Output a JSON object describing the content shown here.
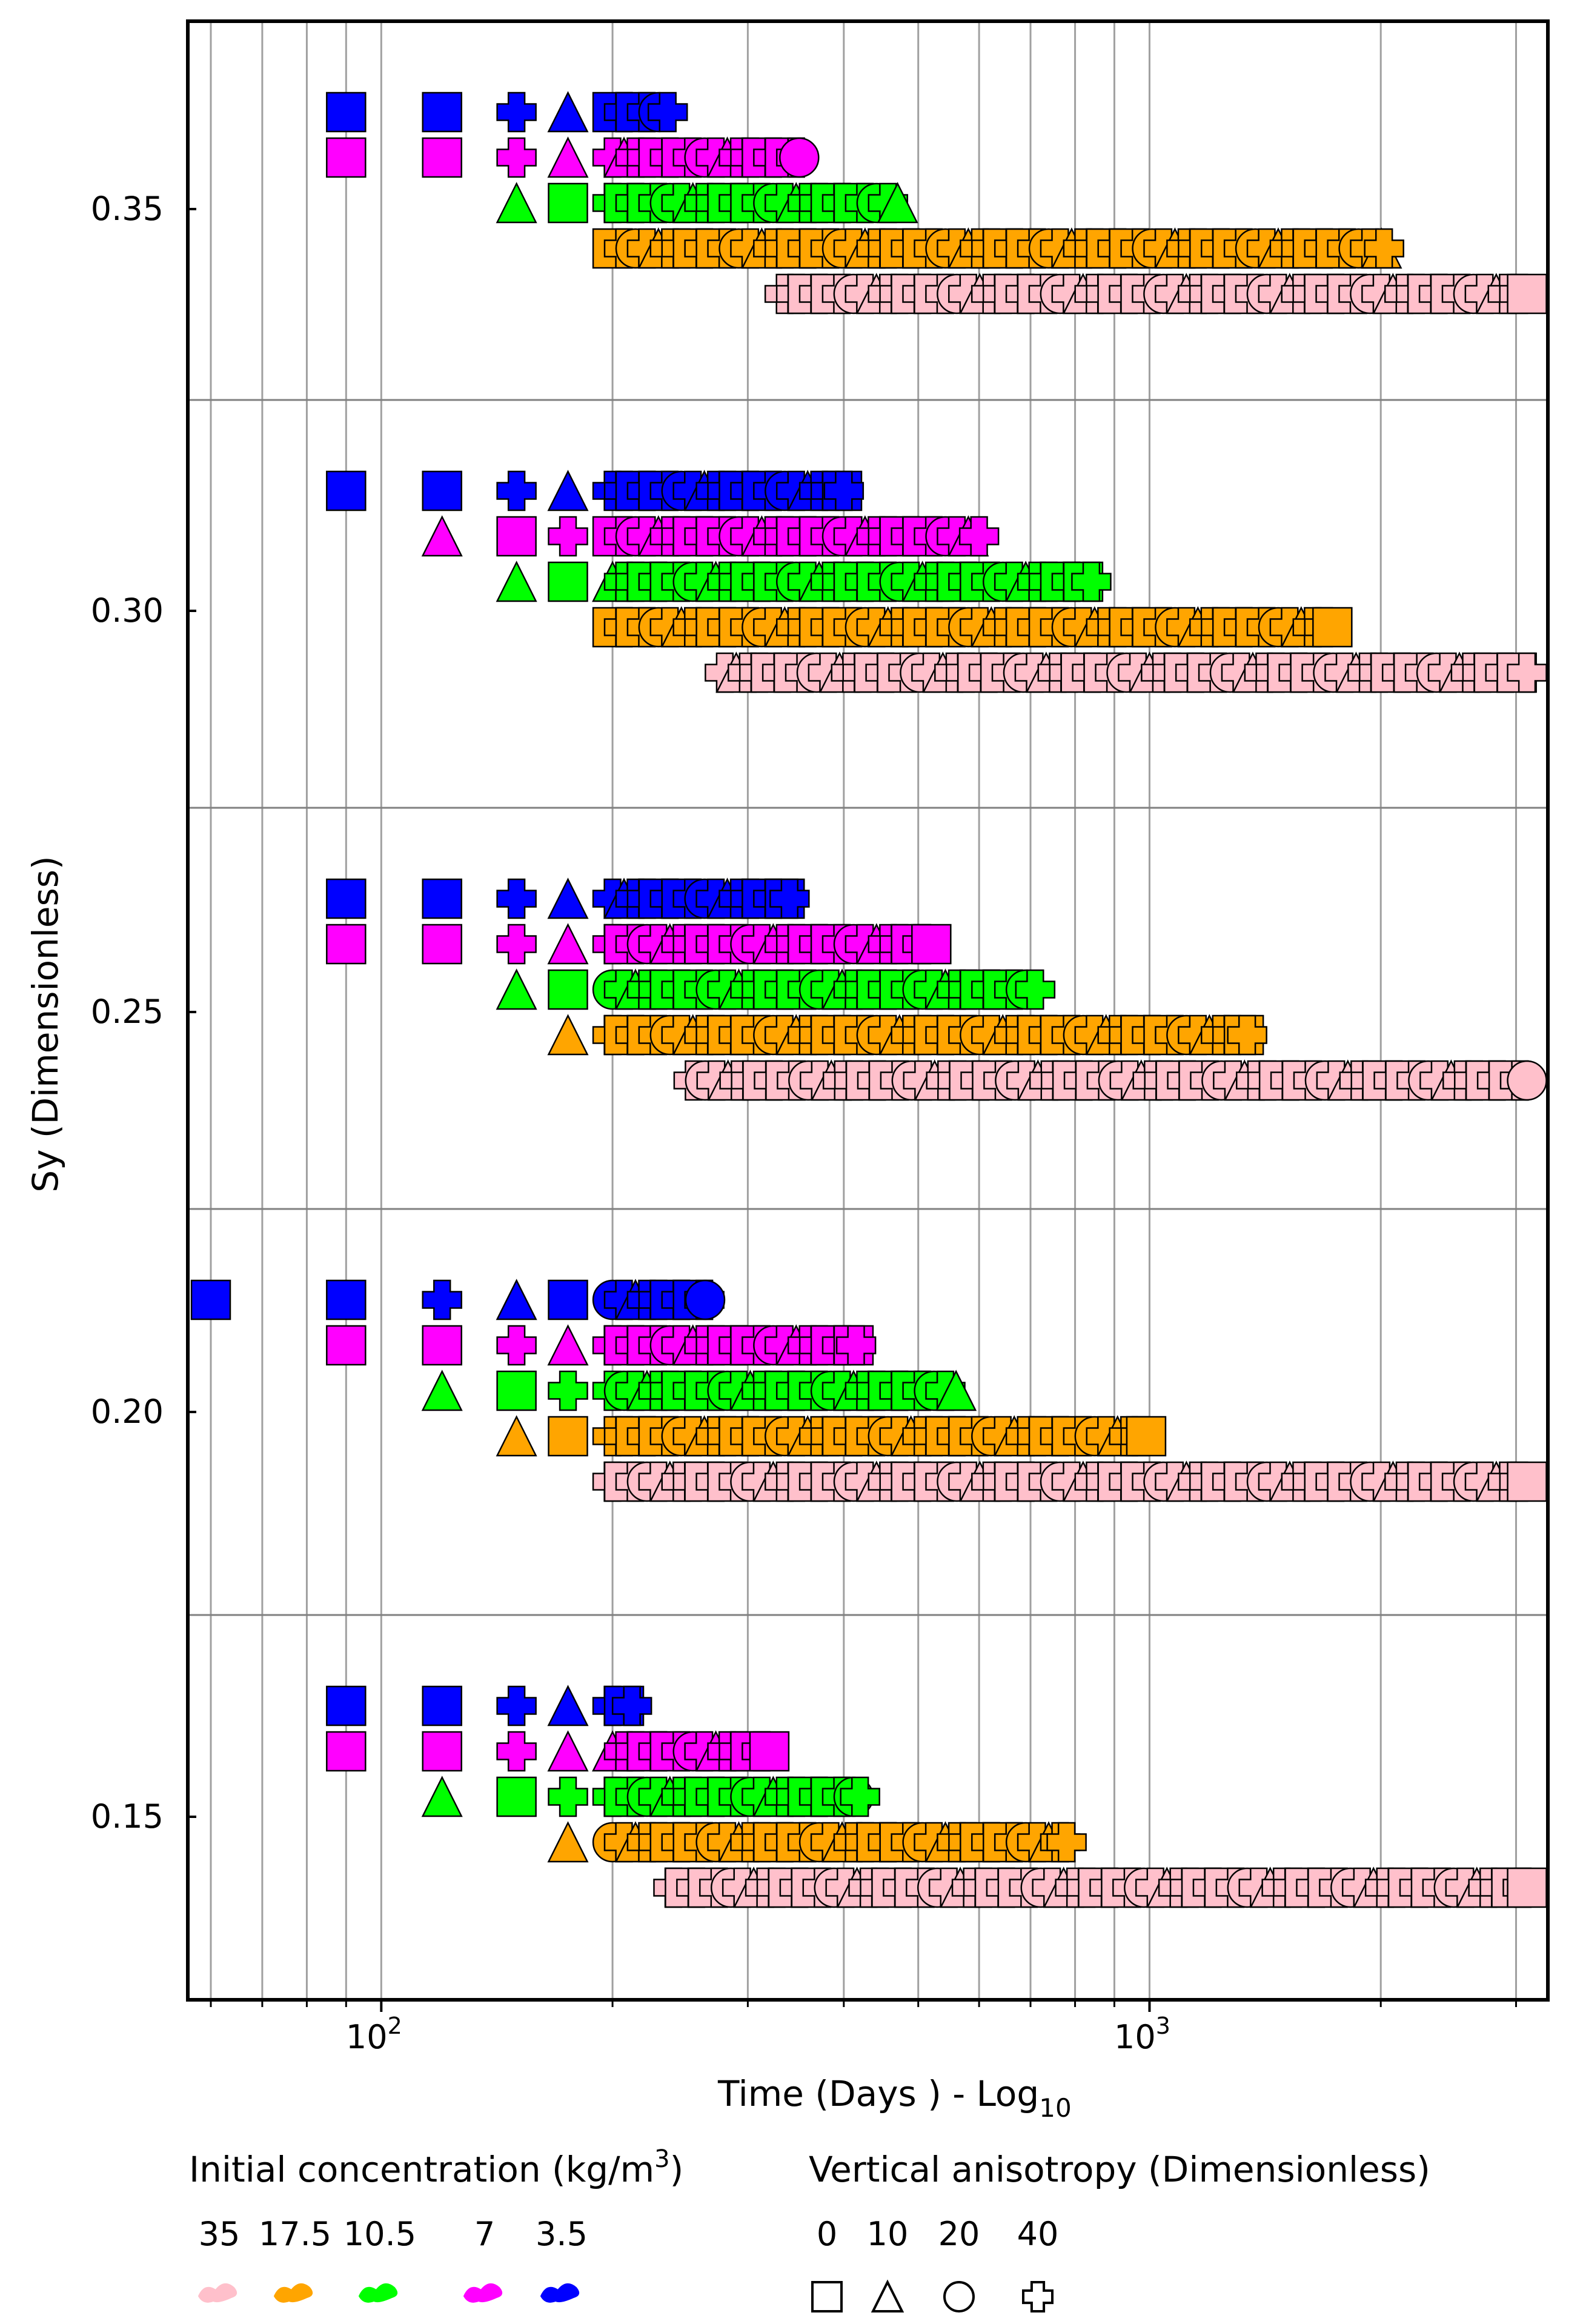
{
  "chart_data": {
    "type": "scatter",
    "title": "",
    "xlabel": "Time (Days ) - Log",
    "xlabel_sub": "10",
    "ylabel": "Sy (Dimensionless)",
    "x_scale": "log",
    "xlim": [
      56,
      3300
    ],
    "x_ticks": [
      {
        "value": 100,
        "base": "10",
        "exp": "2"
      },
      {
        "value": 1000,
        "base": "10",
        "exp": "3"
      }
    ],
    "y_ticks": [
      "0.35",
      "0.30",
      "0.25",
      "0.20",
      "0.15"
    ],
    "grid": {
      "vertical": true,
      "horizontal_separators": true
    },
    "legend_concentration": {
      "title": "Initial concentration (kg/m",
      "title_sup": "3",
      "title_end": ")",
      "items": [
        {
          "label": "35",
          "color": "#ffc0cb"
        },
        {
          "label": "17.5",
          "color": "#ffa500"
        },
        {
          "label": "10.5",
          "color": "#00ff00"
        },
        {
          "label": "7",
          "color": "#ff00ff"
        },
        {
          "label": "3.5",
          "color": "#0000ff"
        }
      ]
    },
    "legend_anisotropy": {
      "title": "Vertical anisotropy (Dimensionless)",
      "items": [
        {
          "label": "0",
          "shape": "square"
        },
        {
          "label": "10",
          "shape": "triangle"
        },
        {
          "label": "20",
          "shape": "circle"
        },
        {
          "label": "40",
          "shape": "cross"
        }
      ]
    },
    "series": [
      {
        "sy": 0.35,
        "concentration": 3.5,
        "color": "#0000ff",
        "x_start": 90,
        "x_end": 236
      },
      {
        "sy": 0.35,
        "concentration": 7,
        "color": "#ff00ff",
        "x_start": 90,
        "x_end": 350
      },
      {
        "sy": 0.35,
        "concentration": 10.5,
        "color": "#00ff00",
        "x_start": 150,
        "x_end": 470
      },
      {
        "sy": 0.35,
        "concentration": 17.5,
        "color": "#ffa500",
        "x_start": 200,
        "x_end": 2020
      },
      {
        "sy": 0.35,
        "concentration": 35,
        "color": "#ffc0cb",
        "x_start": 335,
        "x_end": 3100
      },
      {
        "sy": 0.3,
        "concentration": 3.5,
        "color": "#0000ff",
        "x_start": 90,
        "x_end": 400
      },
      {
        "sy": 0.3,
        "concentration": 7,
        "color": "#ff00ff",
        "x_start": 120,
        "x_end": 600
      },
      {
        "sy": 0.3,
        "concentration": 10.5,
        "color": "#00ff00",
        "x_start": 150,
        "x_end": 840
      },
      {
        "sy": 0.3,
        "concentration": 17.5,
        "color": "#ffa500",
        "x_start": 200,
        "x_end": 1730
      },
      {
        "sy": 0.3,
        "concentration": 35,
        "color": "#ffc0cb",
        "x_start": 280,
        "x_end": 3100
      },
      {
        "sy": 0.25,
        "concentration": 3.5,
        "color": "#0000ff",
        "x_start": 90,
        "x_end": 340
      },
      {
        "sy": 0.25,
        "concentration": 7,
        "color": "#ff00ff",
        "x_start": 90,
        "x_end": 520
      },
      {
        "sy": 0.25,
        "concentration": 10.5,
        "color": "#00ff00",
        "x_start": 150,
        "x_end": 710
      },
      {
        "sy": 0.25,
        "concentration": 17.5,
        "color": "#ffa500",
        "x_start": 175,
        "x_end": 1340
      },
      {
        "sy": 0.25,
        "concentration": 35,
        "color": "#ffc0cb",
        "x_start": 255,
        "x_end": 3100
      },
      {
        "sy": 0.2,
        "concentration": 3.5,
        "color": "#0000ff",
        "x_start": 60,
        "x_end": 264
      },
      {
        "sy": 0.2,
        "concentration": 7,
        "color": "#ff00ff",
        "x_start": 90,
        "x_end": 415
      },
      {
        "sy": 0.2,
        "concentration": 10.5,
        "color": "#00ff00",
        "x_start": 120,
        "x_end": 560
      },
      {
        "sy": 0.2,
        "concentration": 17.5,
        "color": "#ffa500",
        "x_start": 150,
        "x_end": 990
      },
      {
        "sy": 0.2,
        "concentration": 35,
        "color": "#ffc0cb",
        "x_start": 200,
        "x_end": 3100
      },
      {
        "sy": 0.15,
        "concentration": 3.5,
        "color": "#0000ff",
        "x_start": 90,
        "x_end": 212
      },
      {
        "sy": 0.15,
        "concentration": 7,
        "color": "#ff00ff",
        "x_start": 90,
        "x_end": 320
      },
      {
        "sy": 0.15,
        "concentration": 10.5,
        "color": "#00ff00",
        "x_start": 120,
        "x_end": 420
      },
      {
        "sy": 0.15,
        "concentration": 17.5,
        "color": "#ffa500",
        "x_start": 175,
        "x_end": 780
      },
      {
        "sy": 0.15,
        "concentration": 35,
        "color": "#ffc0cb",
        "x_start": 240,
        "x_end": 3100
      }
    ]
  }
}
